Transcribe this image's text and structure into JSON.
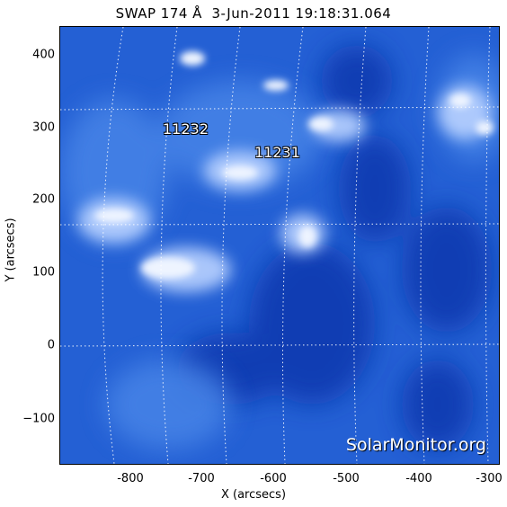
{
  "title": "SWAP 174 Å  3-Jun-2011 19:18:31.064",
  "x_axis": {
    "label": "X (arcsecs)",
    "ticks": [
      "-800",
      "-700",
      "-600",
      "-500",
      "-400",
      "-300"
    ]
  },
  "y_axis": {
    "label": "Y (arcsecs)",
    "ticks": [
      "400",
      "300",
      "200",
      "100",
      "0",
      "−100"
    ]
  },
  "regions": {
    "ar1": "11232",
    "ar2": "11231"
  },
  "watermark": "SolarMonitor.org",
  "colors": {
    "background": "#1f5bd0",
    "dark": "#0b32a8",
    "bright": "#e8f0ff"
  }
}
